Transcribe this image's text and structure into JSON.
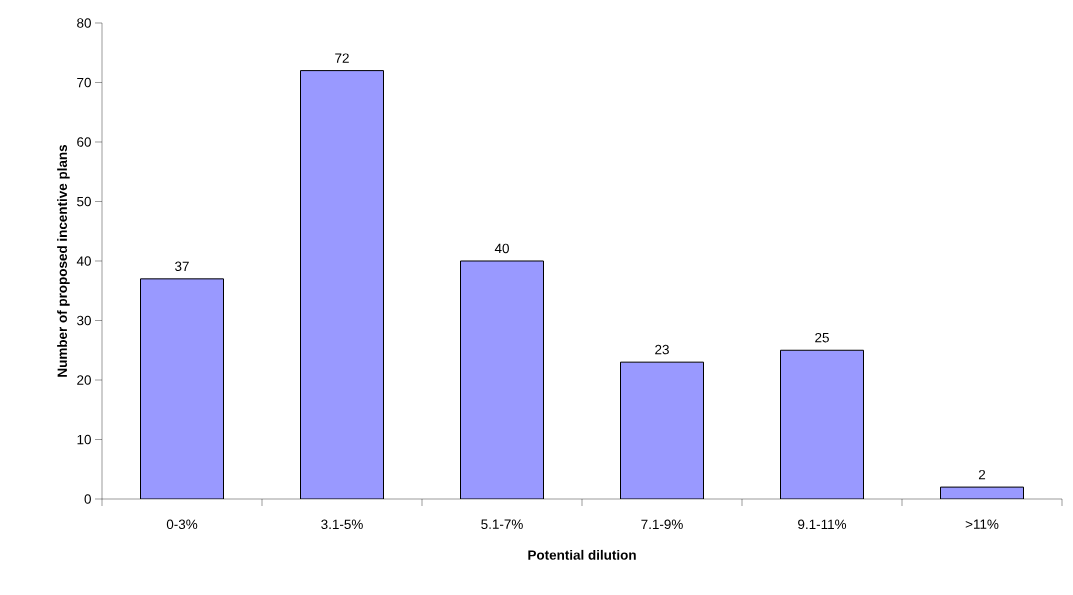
{
  "chart_data": {
    "type": "bar",
    "xlabel": "Potential dilution",
    "ylabel": "Number of proposed incentive plans",
    "categories": [
      "0-3%",
      "3.1-5%",
      "5.1-7%",
      "7.1-9%",
      "9.1-11%",
      ">11%"
    ],
    "values": [
      37,
      72,
      40,
      23,
      25,
      2
    ],
    "color": "#9999ff",
    "ylim": [
      0,
      80
    ],
    "yticks": [
      0,
      10,
      20,
      30,
      40,
      50,
      60,
      70,
      80
    ],
    "data_labels": true
  }
}
